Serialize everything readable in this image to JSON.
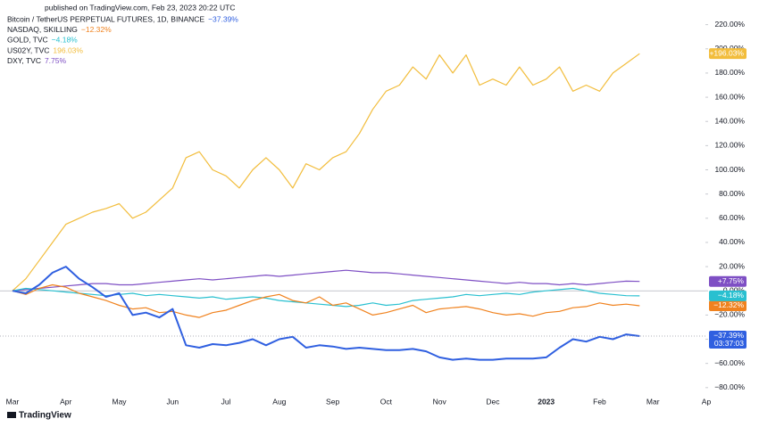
{
  "header": "published on TradingView.com, Feb 23, 2023 20:22 UTC",
  "footer": "TradingView",
  "chart_data": {
    "type": "line",
    "categories": [
      "Mar",
      null,
      null,
      null,
      "Apr",
      null,
      null,
      null,
      "May",
      null,
      null,
      null,
      "Jun",
      null,
      null,
      null,
      "Jul",
      null,
      null,
      null,
      "Aug",
      null,
      null,
      null,
      "Sep",
      null,
      null,
      null,
      "Oct",
      null,
      null,
      null,
      "Nov",
      null,
      null,
      null,
      "Dec",
      null,
      null,
      null,
      "2023",
      null,
      null,
      null,
      "Feb",
      null,
      null,
      null,
      "Mar",
      null,
      null,
      null,
      "Ap"
    ],
    "ylim": [
      -87.5,
      233
    ],
    "yticks": [
      {
        "value": 220,
        "label": "220.00%"
      },
      {
        "value": 200,
        "label": "200.00%"
      },
      {
        "value": 180,
        "label": "180.00%"
      },
      {
        "value": 160,
        "label": "160.00%"
      },
      {
        "value": 140,
        "label": "140.00%"
      },
      {
        "value": 120,
        "label": "120.00%"
      },
      {
        "value": 100,
        "label": "100.00%"
      },
      {
        "value": 80,
        "label": "80.00%"
      },
      {
        "value": 60,
        "label": "60.00%"
      },
      {
        "value": 40,
        "label": "40.00%"
      },
      {
        "value": 20,
        "label": "20.00%"
      },
      {
        "value": 0,
        "label": "0.00%"
      },
      {
        "value": -20,
        "label": "−20.00%"
      },
      {
        "value": -40,
        "label": "−40.00%"
      },
      {
        "value": -60,
        "label": "−60.00%"
      },
      {
        "value": -80,
        "label": "−80.00%"
      }
    ],
    "series": [
      {
        "name": "Bitcoin / TetherUS PERPETUAL FUTURES, 1D, BINANCE",
        "color": "#2f5fe0",
        "legend_label": "−37.39%",
        "tag_label": "−37.39%",
        "countdown": "03:37:03",
        "values": [
          0,
          -2,
          5,
          15,
          20,
          10,
          3,
          -5,
          -2,
          -20,
          -18,
          -22,
          -15,
          -45,
          -47,
          -44,
          -45,
          -43,
          -40,
          -45,
          -40,
          -38,
          -47,
          -45,
          -46,
          -48,
          -47,
          -48,
          -49,
          -49,
          -48,
          -50,
          -55,
          -57,
          -56,
          -57,
          -57,
          -56,
          -56,
          -56,
          -55,
          -47,
          -40,
          -42,
          -38,
          -40,
          -36,
          -37.39,
          null,
          null,
          null,
          null,
          null
        ]
      },
      {
        "name": "NASDAQ, SKILLING",
        "color": "#f0821e",
        "legend_label": "−12.32%",
        "tag_label": "−12.32%",
        "values": [
          0,
          -3,
          2,
          5,
          3,
          -2,
          -5,
          -8,
          -12,
          -15,
          -14,
          -18,
          -17,
          -20,
          -22,
          -18,
          -16,
          -12,
          -8,
          -5,
          -3,
          -8,
          -10,
          -5,
          -12,
          -10,
          -15,
          -20,
          -18,
          -15,
          -12,
          -18,
          -15,
          -14,
          -13,
          -15,
          -18,
          -20,
          -19,
          -21,
          -18,
          -17,
          -14,
          -13,
          -10,
          -12,
          -11,
          -12.32,
          null,
          null,
          null,
          null,
          null
        ]
      },
      {
        "name": "GOLD, TVC",
        "color": "#29c0d0",
        "legend_label": "−4.18%",
        "tag_label": "−4.18%",
        "values": [
          0,
          2,
          1,
          0,
          -1,
          -2,
          -3,
          -4,
          -3,
          -2,
          -4,
          -3,
          -4,
          -5,
          -6,
          -5,
          -7,
          -6,
          -5,
          -6,
          -8,
          -9,
          -10,
          -11,
          -12,
          -13,
          -12,
          -10,
          -12,
          -11,
          -8,
          -7,
          -6,
          -5,
          -3,
          -4,
          -3,
          -2,
          -3,
          -1,
          0,
          1,
          2,
          0,
          -2,
          -3,
          -4,
          -4.18,
          null,
          null,
          null,
          null,
          null
        ]
      },
      {
        "name": "US02Y, TVC",
        "color": "#f2bd3c",
        "legend_label": "196.03%",
        "tag_label": "+196.03%",
        "values": [
          0,
          10,
          25,
          40,
          55,
          60,
          65,
          68,
          72,
          60,
          65,
          75,
          85,
          110,
          115,
          100,
          95,
          85,
          100,
          110,
          100,
          85,
          105,
          100,
          110,
          115,
          130,
          150,
          165,
          170,
          185,
          175,
          195,
          180,
          195,
          170,
          175,
          170,
          185,
          170,
          175,
          185,
          165,
          170,
          165,
          180,
          188,
          196.03,
          null,
          null,
          null,
          null,
          null
        ]
      },
      {
        "name": "DXY, TVC",
        "color": "#7e4fc4",
        "legend_label": "7.75%",
        "tag_label": "+7.75%",
        "values": [
          0,
          1,
          2,
          3,
          4,
          5,
          6,
          6,
          5,
          5,
          6,
          7,
          8,
          9,
          10,
          9,
          10,
          11,
          12,
          13,
          12,
          13,
          14,
          15,
          16,
          17,
          16,
          15,
          15,
          14,
          13,
          12,
          11,
          10,
          9,
          8,
          7,
          6,
          7,
          6,
          6,
          5,
          6,
          5,
          6,
          7,
          8,
          7.75,
          null,
          null,
          null,
          null,
          null
        ]
      }
    ]
  }
}
